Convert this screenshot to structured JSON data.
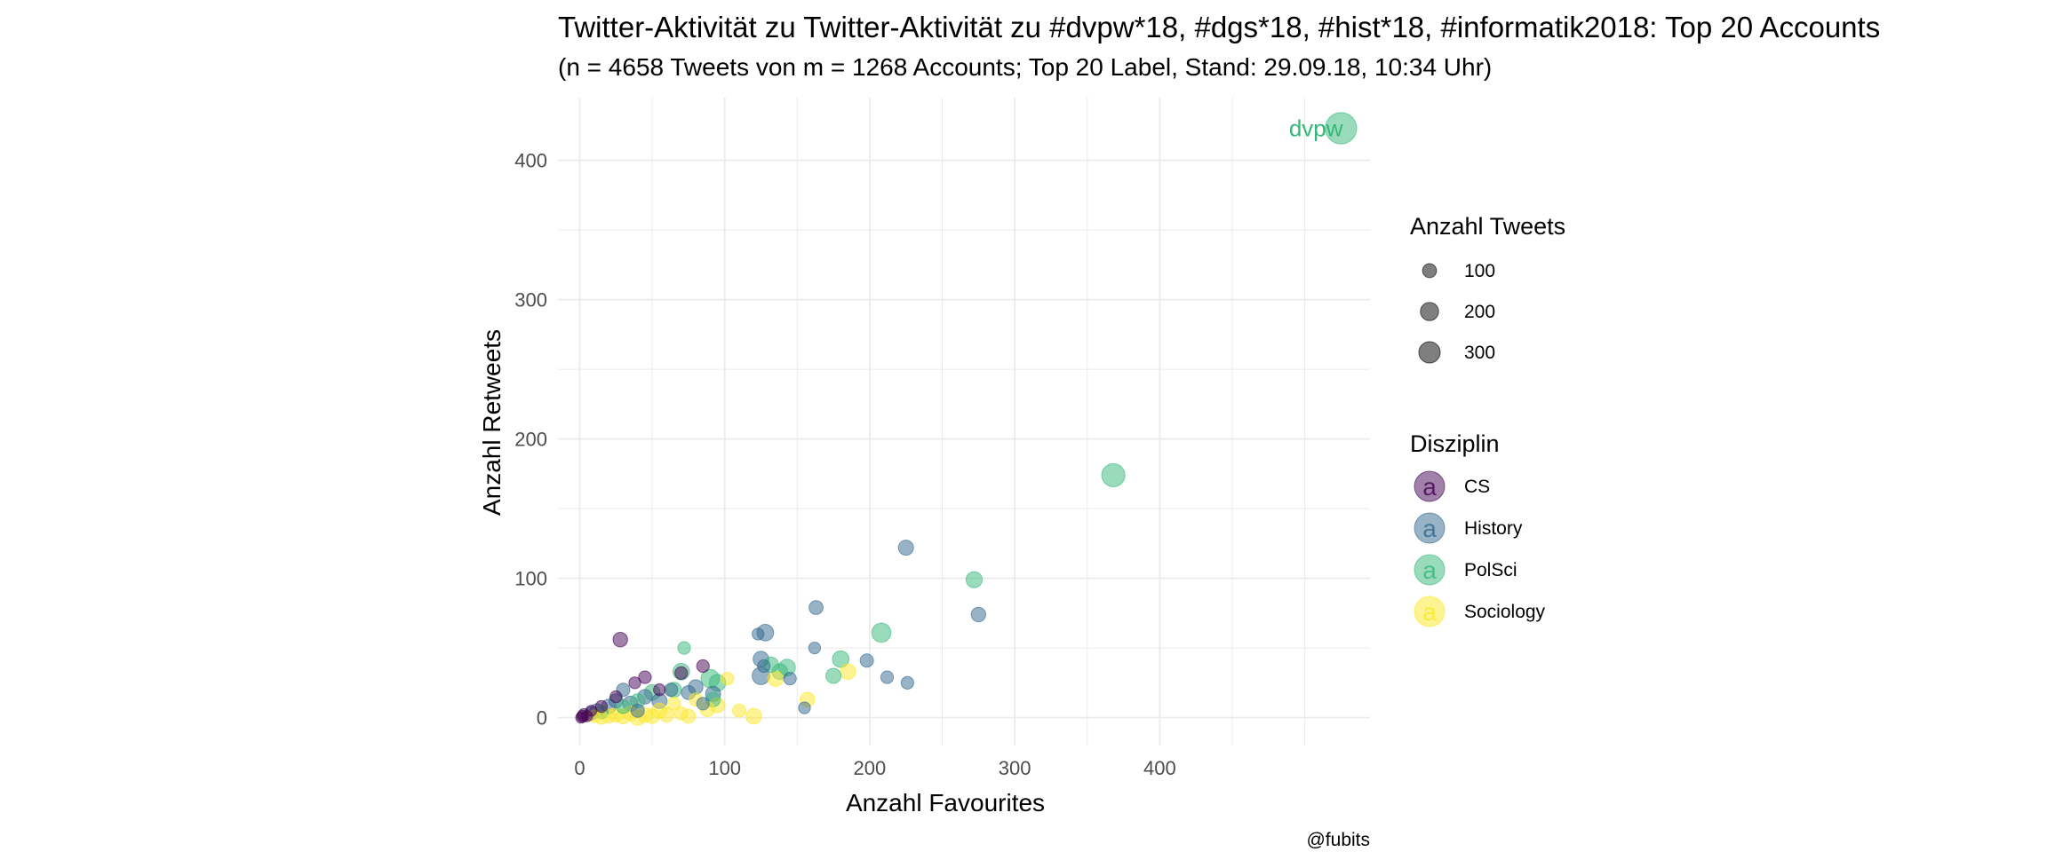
{
  "chart_data": {
    "type": "scatter",
    "title": "Twitter-Aktivität zu Twitter-Aktivität zu #dvpw*18, #dgs*18, #hist*18, #informatik2018: Top 20 Accounts",
    "subtitle": "(n = 4658 Tweets von m = 1268 Accounts; Top 20 Label, Stand: 29.09.18, 10:34 Uhr)",
    "xlabel": "Anzahl Favourites",
    "ylabel": "Anzahl Retweets",
    "caption": "@fubits",
    "xlim": [
      -15,
      545
    ],
    "ylim": [
      -20,
      445
    ],
    "x_ticks": [
      0,
      100,
      200,
      300,
      400
    ],
    "y_ticks": [
      0,
      100,
      200,
      300,
      400
    ],
    "grid": true,
    "size_legend": {
      "title": "Anzahl Tweets",
      "entries": [
        {
          "label": "100",
          "value": 100
        },
        {
          "label": "200",
          "value": 200
        },
        {
          "label": "300",
          "value": 300
        }
      ]
    },
    "color_legend": {
      "title": "Disziplin",
      "glyph": "a",
      "entries": [
        {
          "label": "CS",
          "color": "#440154"
        },
        {
          "label": "History",
          "color": "#31688e"
        },
        {
          "label": "PolSci",
          "color": "#35b779"
        },
        {
          "label": "Sociology",
          "color": "#fde725"
        }
      ]
    },
    "labels": [
      {
        "text": "dvpw",
        "series": "PolSci",
        "x": 530,
        "y": 423
      }
    ],
    "series": [
      {
        "name": "CS",
        "color": "#440154",
        "points": [
          {
            "x": 28,
            "y": 56,
            "size": 40
          },
          {
            "x": 85,
            "y": 37,
            "size": 25
          },
          {
            "x": 45,
            "y": 29,
            "size": 25
          },
          {
            "x": 38,
            "y": 25,
            "size": 20
          },
          {
            "x": 70,
            "y": 32,
            "size": 25
          },
          {
            "x": 55,
            "y": 20,
            "size": 20
          },
          {
            "x": 25,
            "y": 15,
            "size": 20
          },
          {
            "x": 15,
            "y": 8,
            "size": 20
          },
          {
            "x": 8,
            "y": 5,
            "size": 15
          },
          {
            "x": 3,
            "y": 2,
            "size": 25
          },
          {
            "x": 2,
            "y": 1,
            "size": 20
          },
          {
            "x": 1,
            "y": 0,
            "size": 15
          },
          {
            "x": 5,
            "y": 1,
            "size": 15
          }
        ]
      },
      {
        "name": "History",
        "color": "#31688e",
        "points": [
          {
            "x": 225,
            "y": 122,
            "size": 45
          },
          {
            "x": 275,
            "y": 74,
            "size": 40
          },
          {
            "x": 163,
            "y": 79,
            "size": 35
          },
          {
            "x": 128,
            "y": 61,
            "size": 60
          },
          {
            "x": 123,
            "y": 60,
            "size": 20
          },
          {
            "x": 125,
            "y": 42,
            "size": 50
          },
          {
            "x": 127,
            "y": 37,
            "size": 25
          },
          {
            "x": 125,
            "y": 30,
            "size": 70
          },
          {
            "x": 145,
            "y": 28,
            "size": 25
          },
          {
            "x": 198,
            "y": 41,
            "size": 30
          },
          {
            "x": 212,
            "y": 29,
            "size": 25
          },
          {
            "x": 226,
            "y": 25,
            "size": 25
          },
          {
            "x": 162,
            "y": 50,
            "size": 20
          },
          {
            "x": 155,
            "y": 7,
            "size": 20
          },
          {
            "x": 80,
            "y": 22,
            "size": 40
          },
          {
            "x": 92,
            "y": 17,
            "size": 45
          },
          {
            "x": 75,
            "y": 18,
            "size": 35
          },
          {
            "x": 63,
            "y": 20,
            "size": 30
          },
          {
            "x": 55,
            "y": 12,
            "size": 45
          },
          {
            "x": 45,
            "y": 15,
            "size": 40
          },
          {
            "x": 35,
            "y": 10,
            "size": 45
          },
          {
            "x": 30,
            "y": 20,
            "size": 30
          },
          {
            "x": 25,
            "y": 12,
            "size": 35
          },
          {
            "x": 20,
            "y": 8,
            "size": 40
          },
          {
            "x": 12,
            "y": 5,
            "size": 35
          },
          {
            "x": 8,
            "y": 3,
            "size": 30
          },
          {
            "x": 40,
            "y": 5,
            "size": 30
          },
          {
            "x": 85,
            "y": 10,
            "size": 25
          }
        ]
      },
      {
        "name": "PolSci",
        "color": "#35b779",
        "points": [
          {
            "x": 525,
            "y": 423,
            "size": 320
          },
          {
            "x": 368,
            "y": 174,
            "size": 150
          },
          {
            "x": 272,
            "y": 99,
            "size": 55
          },
          {
            "x": 208,
            "y": 61,
            "size": 90
          },
          {
            "x": 180,
            "y": 42,
            "size": 60
          },
          {
            "x": 175,
            "y": 30,
            "size": 45
          },
          {
            "x": 143,
            "y": 36,
            "size": 60
          },
          {
            "x": 132,
            "y": 38,
            "size": 45
          },
          {
            "x": 138,
            "y": 33,
            "size": 50
          },
          {
            "x": 72,
            "y": 50,
            "size": 25
          },
          {
            "x": 90,
            "y": 28,
            "size": 80
          },
          {
            "x": 95,
            "y": 25,
            "size": 60
          },
          {
            "x": 70,
            "y": 33,
            "size": 60
          },
          {
            "x": 65,
            "y": 20,
            "size": 45
          },
          {
            "x": 50,
            "y": 18,
            "size": 50
          },
          {
            "x": 40,
            "y": 12,
            "size": 40
          },
          {
            "x": 30,
            "y": 8,
            "size": 35
          },
          {
            "x": 15,
            "y": 4,
            "size": 30
          },
          {
            "x": 92,
            "y": 13,
            "size": 40
          }
        ]
      },
      {
        "name": "Sociology",
        "color": "#fde725",
        "points": [
          {
            "x": 185,
            "y": 33,
            "size": 50
          },
          {
            "x": 135,
            "y": 28,
            "size": 50
          },
          {
            "x": 157,
            "y": 13,
            "size": 40
          },
          {
            "x": 120,
            "y": 1,
            "size": 50
          },
          {
            "x": 110,
            "y": 5,
            "size": 30
          },
          {
            "x": 102,
            "y": 28,
            "size": 25
          },
          {
            "x": 95,
            "y": 9,
            "size": 45
          },
          {
            "x": 88,
            "y": 6,
            "size": 40
          },
          {
            "x": 75,
            "y": 1,
            "size": 35
          },
          {
            "x": 70,
            "y": 3,
            "size": 30
          },
          {
            "x": 60,
            "y": 2,
            "size": 40
          },
          {
            "x": 55,
            "y": 5,
            "size": 45
          },
          {
            "x": 50,
            "y": 1,
            "size": 40
          },
          {
            "x": 45,
            "y": 2,
            "size": 45
          },
          {
            "x": 40,
            "y": 0,
            "size": 50
          },
          {
            "x": 35,
            "y": 3,
            "size": 40
          },
          {
            "x": 30,
            "y": 1,
            "size": 45
          },
          {
            "x": 25,
            "y": 2,
            "size": 40
          },
          {
            "x": 20,
            "y": 1,
            "size": 35
          },
          {
            "x": 15,
            "y": 0,
            "size": 30
          },
          {
            "x": 10,
            "y": 1,
            "size": 25
          },
          {
            "x": 65,
            "y": 10,
            "size": 30
          },
          {
            "x": 80,
            "y": 13,
            "size": 30
          }
        ]
      }
    ]
  }
}
